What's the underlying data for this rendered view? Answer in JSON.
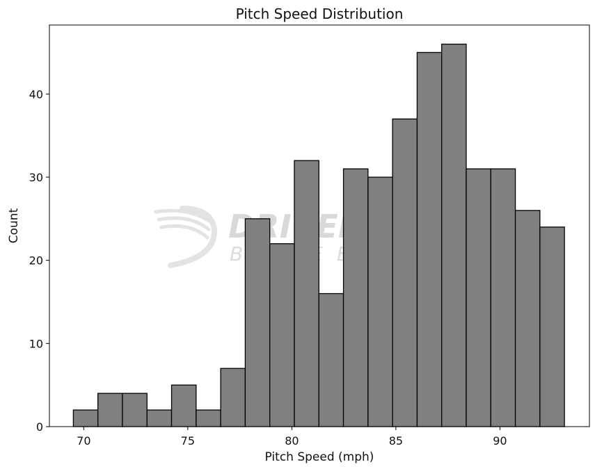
{
  "chart_data": {
    "type": "bar",
    "title": "Pitch Speed Distribution",
    "xlabel": "Pitch Speed (mph)",
    "ylabel": "Count",
    "xlim": [
      68.35,
      94.3
    ],
    "ylim": [
      0,
      48.3
    ],
    "xticks": [
      70,
      75,
      80,
      85,
      90
    ],
    "yticks": [
      0,
      10,
      20,
      30,
      40
    ],
    "bin_edges": [
      69.5,
      70.68,
      71.86,
      73.04,
      74.22,
      75.4,
      76.58,
      77.76,
      78.94,
      80.12,
      81.3,
      82.48,
      83.66,
      84.84,
      86.02,
      87.2,
      88.38,
      89.56,
      90.74,
      91.92,
      93.1
    ],
    "values": [
      2,
      4,
      4,
      2,
      5,
      2,
      7,
      25,
      22,
      32,
      16,
      31,
      30,
      37,
      45,
      46,
      31,
      31,
      26,
      24
    ],
    "bar_color": "#808080",
    "edge_color": "#000000",
    "grid": false,
    "watermark": {
      "main": "DRIVELINE",
      "sub": "BASEBALL"
    }
  }
}
